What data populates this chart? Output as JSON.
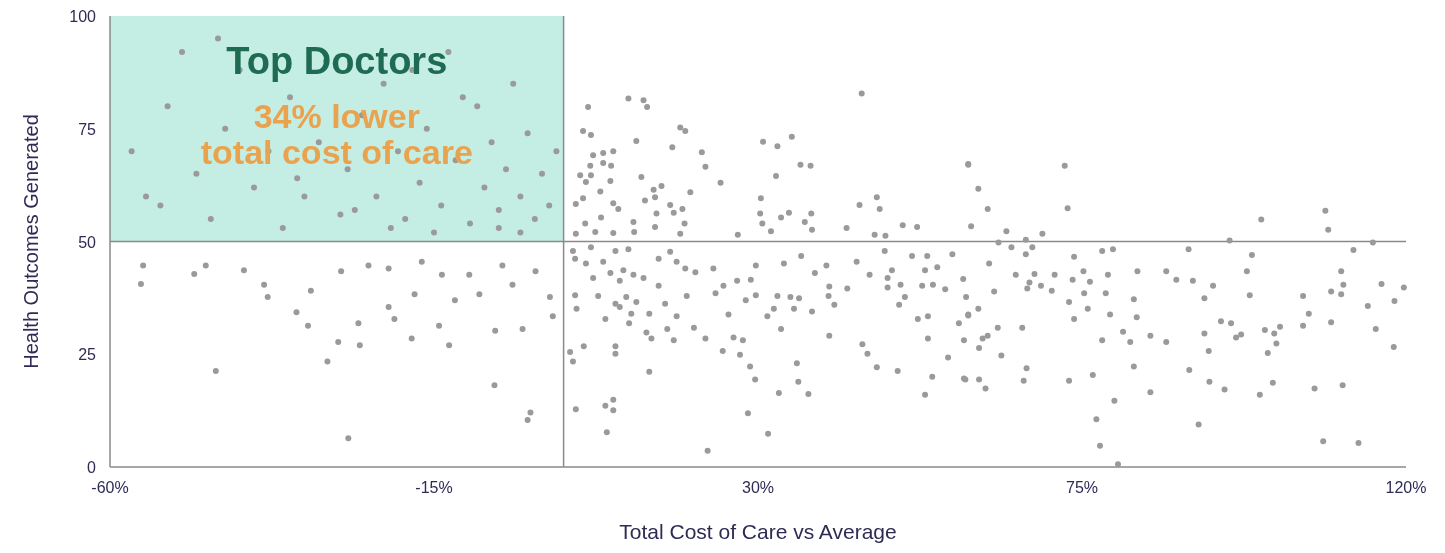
{
  "chart_data": {
    "type": "scatter",
    "xlabel": "Total Cost of Care vs Average",
    "ylabel": "Health Outcomes Generated",
    "annotations": [
      "Top Doctors",
      "34% lower\ntotal cost of care"
    ],
    "xlim": [
      -60,
      120
    ],
    "ylim": [
      0,
      100
    ],
    "xticks": [
      {
        "value": -60,
        "label": "-60%"
      },
      {
        "value": -15,
        "label": "-15%"
      },
      {
        "value": 30,
        "label": "30%"
      },
      {
        "value": 75,
        "label": "75%"
      },
      {
        "value": 120,
        "label": "120%"
      }
    ],
    "yticks": [
      0,
      25,
      50,
      75,
      100
    ],
    "grid": false,
    "marker": "circle",
    "ref_lines": [
      {
        "axis": "x",
        "value": 3,
        "color": "#8a8a8a"
      },
      {
        "axis": "y",
        "value": 50,
        "color": "#8a8a8a"
      }
    ],
    "series": [
      {
        "color": "#9a9a9a",
        "x": [
          -57,
          -55,
          -52,
          -50,
          -48,
          -46,
          -44,
          -42,
          -40,
          -38,
          -36,
          -35,
          -33,
          -31,
          -30,
          -28,
          -27,
          -25,
          -23,
          -22,
          -20,
          -19,
          -17,
          -16,
          -14,
          -13,
          -12,
          -10,
          -9,
          -8,
          -7,
          -6,
          -5,
          -4,
          -3,
          -2,
          -1,
          0,
          1,
          2,
          -11,
          -18,
          -26,
          -34,
          -45,
          -53,
          -15,
          -6,
          -3,
          -21,
          -55.4,
          -55.7,
          -46.7,
          -48.3,
          -45.3,
          -41.4,
          -38.6,
          -38.1,
          -32.1,
          -34.1,
          -32.5,
          -28.3,
          -29.8,
          -26.9,
          -25.5,
          -25.3,
          -21.3,
          -20.5,
          -18.1,
          -17.7,
          -14.3,
          -12.9,
          -6.6,
          -1.6,
          -2.0,
          -6.5,
          -2.7,
          1.5,
          -10.1,
          -5.5,
          -0.9,
          -13.9,
          -16.7,
          -21.3,
          -27.9,
          -24.1,
          -8.7,
          -4.1,
          1.1,
          -12.1,
          12.0,
          14.1,
          14.6,
          6.4,
          5.7,
          6.8,
          44.4,
          19.2,
          19.9,
          13.1,
          18.1,
          22.2,
          22.7,
          30.7,
          32.7,
          34.7,
          35.9,
          37.3,
          32.5,
          24.8,
          13.8,
          8.5,
          7.1,
          9.9,
          6.7,
          8.5,
          9.6,
          5.3,
          6.8,
          6.1,
          9.5,
          8.1,
          5.7,
          4.7,
          9.9,
          10.6,
          8.2,
          6.0,
          7.4,
          4.7,
          9.9,
          12.7,
          15.5,
          16.6,
          14.3,
          15.7,
          20.6,
          17.8,
          19.5,
          18.3,
          15.9,
          15.7,
          19.2,
          19.8,
          12.8,
          30.4,
          30.3,
          30.6,
          31.8,
          33.2,
          34.3,
          37.4,
          36.5,
          37.5,
          27.2,
          44.1,
          46.5,
          46.9,
          42.3,
          59.2,
          50.1,
          52.1,
          46.2,
          47.7,
          59.6,
          6.8,
          10.2,
          12.0,
          4.3,
          4.6,
          6.1,
          8.5,
          11.3,
          7.1,
          9.5,
          10.8,
          12.7,
          14.1,
          16.2,
          17.8,
          18.7,
          19.9,
          21.3,
          23.8,
          29.7,
          33.6,
          36.0,
          39.5,
          37.9,
          43.7,
          45.5,
          47.6,
          51.4,
          53.5,
          57.0,
          48.6,
          48.0,
          49.8,
          53.2,
          54.9,
          52.8,
          54.3,
          56.0,
          58.5,
          50.4,
          49.6,
          42.4,
          39.9,
          39.8,
          40.6,
          32.7,
          34.5,
          35.7,
          35.0,
          37.5,
          31.3,
          32.2,
          33.2,
          29.7,
          28.3,
          29.0,
          27.1,
          25.2,
          24.1,
          20.1,
          17.1,
          16.2,
          13.1,
          11.7,
          10.2,
          7.8,
          4.6,
          4.8,
          8.8,
          10.8,
          12.4,
          14.9,
          12.1,
          14.5,
          15.2,
          17.4,
          18.3,
          18.7,
          21.1,
          22.7,
          25.9,
          26.6,
          27.9,
          25.1,
          27.5,
          28.9,
          29.6,
          32.9,
          35.4,
          35.6,
          37.0,
          39.9,
          44.5,
          45.2,
          46.5,
          49.4,
          52.2,
          53.6,
          53.6,
          54.2,
          53.2,
          56.4,
          57.9,
          59.2,
          58.6,
          58.6,
          58.9,
          48.0,
          4.3,
          3.9,
          5.8,
          10.2,
          10.2,
          14.9,
          4.7,
          8.8,
          9.9,
          9.9,
          9.0,
          23.0,
          28.6,
          31.4,
          59.2,
          60.6,
          61.9,
          72.6,
          73.0,
          64.5,
          69.5,
          67.2,
          63.4,
          65.2,
          68.1,
          67.2,
          99.9,
          108.8,
          109.2,
          115.4,
          95.5,
          112.7,
          89.8,
          79.3,
          77.8,
          73.9,
          98.6,
          97.9,
          98.3,
          62.1,
          65.8,
          68.4,
          71.2,
          67.7,
          69.3,
          67.4,
          70.8,
          62.8,
          73.7,
          75.2,
          76.1,
          78.6,
          82.7,
          86.7,
          88.1,
          90.4,
          93.2,
          111.0,
          111.3,
          109.6,
          111.0,
          116.6,
          119.7,
          114.7,
          118.4,
          105.7,
          106.5,
          105.7,
          109.6,
          115.8,
          118.3,
          75.3,
          78.3,
          82.2,
          73.2,
          73.9,
          75.8,
          78.9,
          82.6,
          92.0,
          59.2,
          60.6,
          63.3,
          61.2,
          61.9,
          60.7,
          63.8,
          66.7,
          80.7,
          81.7,
          84.5,
          86.7,
          77.8,
          94.3,
          95.7,
          92.0,
          92.6,
          96.4,
          97.1,
          100.4,
          102.5,
          101.7,
          102.0,
          100.8,
          89.9,
          92.7,
          94.8,
          99.7,
          101.5,
          107.3,
          111.2,
          84.5,
          82.2,
          76.5,
          73.2,
          67.3,
          66.9,
          60.7,
          61.6,
          58.8,
          79.5,
          77.0,
          77.5,
          80.0,
          91.2,
          108.5,
          113.4
        ],
        "values": [
          70,
          60,
          80,
          92,
          65,
          55,
          75,
          88,
          62,
          70,
          53,
          82,
          60,
          72,
          90,
          56,
          66,
          78,
          60,
          85,
          70,
          55,
          63,
          75,
          58,
          92,
          68,
          54,
          80,
          62,
          72,
          57,
          66,
          85,
          60,
          74,
          55,
          65,
          58,
          70,
          82,
          88,
          57,
          64,
          95,
          58,
          52,
          53,
          52,
          53,
          44.7,
          40.6,
          44.7,
          42.8,
          21.3,
          43.6,
          40.4,
          37.7,
          39.1,
          34.3,
          31.3,
          27.7,
          23.4,
          6.4,
          31.9,
          27.0,
          35.5,
          32.8,
          28.5,
          38.3,
          31.3,
          27.0,
          18.1,
          12.1,
          10.4,
          30.2,
          30.6,
          33.4,
          42.6,
          44.7,
          43.4,
          42.6,
          45.5,
          44.0,
          43.4,
          44.7,
          38.3,
          40.4,
          37.7,
          37.0,
          81.7,
          81.3,
          79.8,
          79.8,
          74.5,
          73.6,
          82.8,
          75.3,
          74.5,
          72.3,
          70.9,
          69.8,
          66.6,
          72.1,
          71.1,
          73.2,
          67.0,
          66.8,
          64.5,
          63.0,
          64.3,
          69.6,
          69.1,
          70.0,
          66.8,
          67.4,
          66.8,
          64.7,
          64.7,
          63.2,
          63.4,
          61.1,
          59.6,
          58.3,
          58.5,
          57.2,
          55.3,
          54.0,
          52.1,
          51.7,
          51.9,
          54.3,
          61.5,
          62.3,
          59.1,
          59.8,
          60.9,
          58.1,
          57.2,
          56.4,
          56.2,
          53.2,
          51.7,
          54.0,
          52.1,
          59.6,
          56.2,
          54.0,
          52.3,
          55.3,
          56.4,
          56.2,
          54.3,
          52.6,
          51.5,
          58.1,
          59.8,
          57.2,
          53.0,
          67.2,
          53.6,
          53.2,
          51.5,
          51.3,
          53.4,
          48.7,
          47.9,
          48.3,
          47.9,
          46.2,
          45.1,
          45.5,
          43.6,
          41.9,
          43.0,
          41.3,
          42.6,
          41.9,
          46.2,
          47.7,
          45.5,
          44.0,
          43.2,
          44.0,
          44.7,
          45.1,
          46.8,
          44.7,
          43.0,
          45.5,
          42.6,
          47.9,
          46.8,
          46.8,
          47.2,
          43.6,
          39.8,
          40.4,
          43.6,
          44.3,
          40.2,
          40.4,
          39.4,
          41.7,
          37.7,
          36.0,
          39.6,
          40.0,
          37.9,
          36.0,
          37.9,
          37.7,
          37.4,
          35.1,
          34.5,
          33.4,
          35.1,
          30.6,
          38.1,
          37.0,
          41.5,
          41.3,
          40.2,
          38.5,
          37.9,
          36.2,
          40.2,
          36.6,
          37.7,
          36.2,
          37.9,
          38.1,
          35.1,
          32.8,
          35.5,
          34.0,
          34.0,
          31.9,
          29.8,
          28.5,
          30.6,
          28.1,
          33.4,
          30.9,
          28.5,
          33.8,
          28.7,
          28.1,
          25.7,
          24.9,
          22.3,
          19.4,
          16.4,
          23.0,
          18.9,
          16.2,
          29.1,
          27.2,
          25.1,
          22.1,
          21.3,
          32.8,
          33.4,
          28.5,
          20.0,
          16.0,
          24.3,
          31.9,
          33.8,
          28.1,
          19.6,
          37.7,
          41.9,
          23.4,
          25.5,
          26.8,
          26.8,
          25.1,
          21.1,
          12.8,
          13.6,
          14.9,
          12.6,
          7.7,
          3.6,
          11.9,
          7.4,
          67.0,
          61.7,
          57.2,
          66.8,
          57.4,
          52.3,
          51.7,
          50.4,
          49.8,
          48.7,
          48.7,
          47.2,
          54.9,
          56.8,
          52.6,
          49.8,
          50.2,
          48.1,
          48.3,
          48.3,
          47.9,
          46.6,
          47.0,
          43.4,
          38.1,
          45.1,
          42.6,
          42.8,
          42.6,
          40.9,
          40.2,
          39.6,
          39.1,
          38.9,
          41.5,
          43.4,
          41.1,
          42.6,
          43.4,
          43.4,
          41.5,
          41.3,
          40.2,
          43.4,
          40.4,
          38.9,
          38.3,
          40.6,
          39.8,
          35.7,
          36.8,
          37.9,
          34.0,
          31.3,
          32.1,
          30.6,
          26.6,
          38.5,
          38.5,
          37.2,
          36.6,
          32.8,
          35.1,
          33.8,
          33.2,
          37.4,
          33.6,
          35.1,
          30.9,
          28.5,
          29.1,
          26.4,
          24.7,
          30.9,
          30.0,
          27.7,
          29.1,
          27.7,
          28.1,
          32.3,
          31.9,
          29.6,
          25.7,
          28.7,
          29.4,
          30.4,
          31.1,
          29.6,
          27.4,
          25.3,
          21.5,
          18.9,
          17.2,
          16.0,
          18.7,
          17.4,
          18.1,
          16.6,
          22.3,
          20.4,
          19.1,
          21.9,
          19.1,
          19.4,
          17.4,
          19.4,
          14.7,
          10.6,
          4.7,
          0.6,
          9.4,
          5.7,
          5.3
        ]
      }
    ]
  }
}
